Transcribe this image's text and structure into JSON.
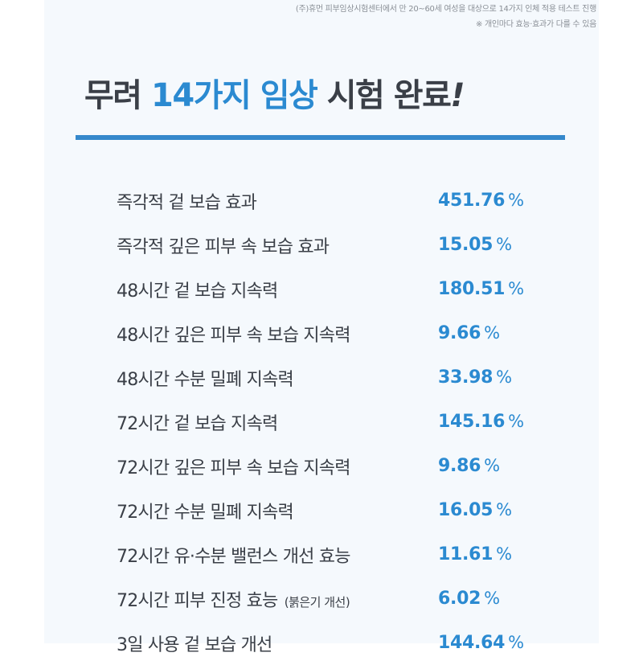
{
  "notes": [
    "(주)휴먼 피부임상시험센터에서 만 20~60세 여성을 대상으로 14가지 인체 적용 테스트 진행",
    "※ 개인마다 효능·효과가 다를 수 있음"
  ],
  "headline": {
    "prefix": "무려 ",
    "highlight": "14가지 임상",
    "suffix": " 시험 완료",
    "bang": "!"
  },
  "results": [
    {
      "label": "즉각적 겉 보습 효과",
      "sub": "",
      "value": "451.76",
      "unit": "%"
    },
    {
      "label": "즉각적 깊은 피부 속 보습 효과",
      "sub": "",
      "value": "15.05",
      "unit": "%"
    },
    {
      "label": "48시간 겉 보습 지속력",
      "sub": "",
      "value": "180.51",
      "unit": "%"
    },
    {
      "label": "48시간 깊은 피부 속 보습 지속력",
      "sub": "",
      "value": "9.66",
      "unit": "%"
    },
    {
      "label": "48시간 수분 밀폐 지속력",
      "sub": "",
      "value": "33.98",
      "unit": "%"
    },
    {
      "label": "72시간 겉 보습 지속력",
      "sub": "",
      "value": "145.16",
      "unit": "%"
    },
    {
      "label": "72시간 깊은 피부 속 보습 지속력",
      "sub": "",
      "value": "9.86",
      "unit": "%"
    },
    {
      "label": "72시간 수분 밀폐 지속력",
      "sub": "",
      "value": "16.05",
      "unit": "%"
    },
    {
      "label": "72시간 유·수분 밸런스 개선 효능",
      "sub": "",
      "value": "11.61",
      "unit": "%"
    },
    {
      "label": "72시간 피부 진정 효능",
      "sub": "(붉은기 개선)",
      "value": "6.02",
      "unit": "%"
    },
    {
      "label": "3일 사용 겉 보습 개선",
      "sub": "",
      "value": "144.64",
      "unit": "%"
    }
  ],
  "colors": {
    "accent": "#2b8ad1",
    "rule": "#3588cc",
    "text": "#3a3f47",
    "panel": "#f5f9fd"
  }
}
